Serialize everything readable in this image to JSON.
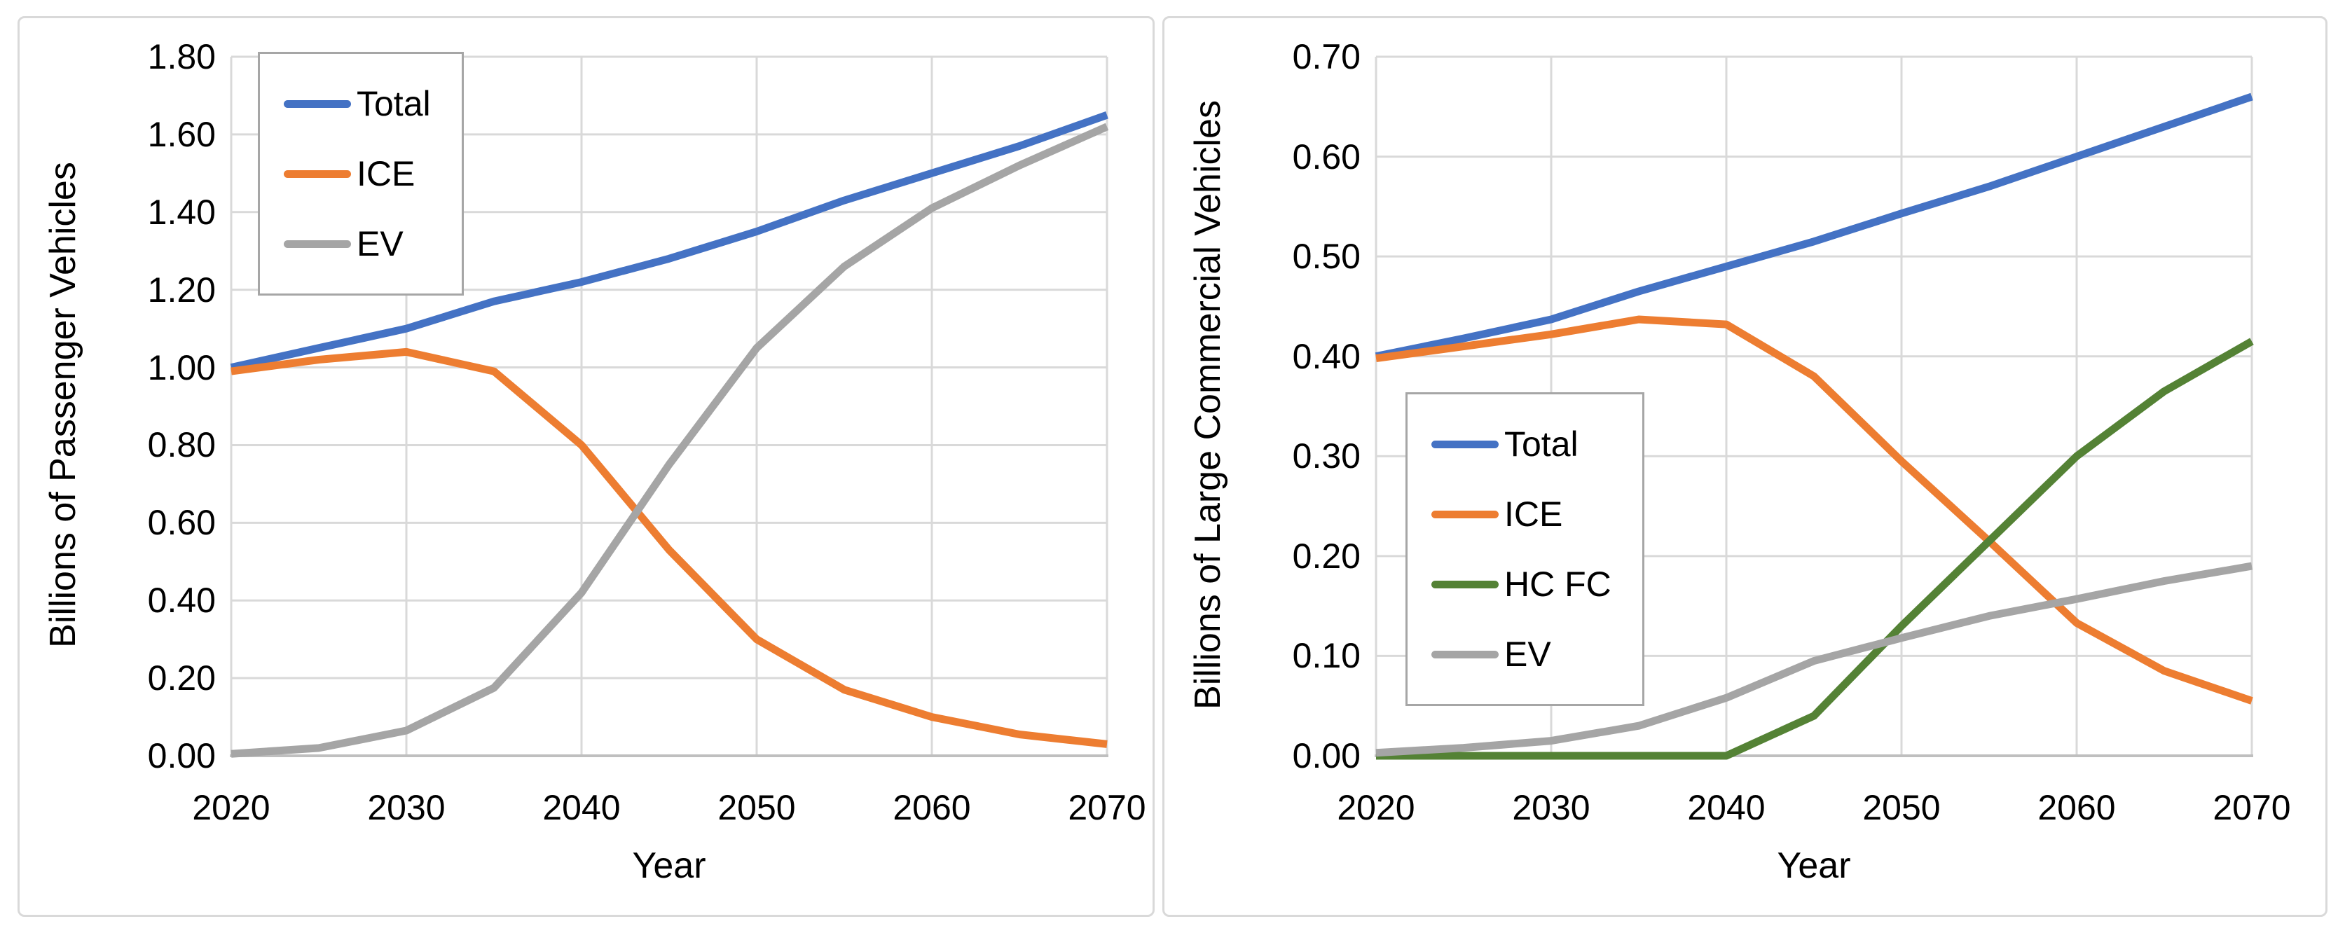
{
  "styles": {
    "panel_border": "#D9D9D9",
    "plot_border": "#D9D9D9",
    "gridline": "#D9D9D9",
    "axis_line": "#BFBFBF",
    "legend_border": "#A6A6A6",
    "text_color": "#000000"
  },
  "chart_data": [
    {
      "type": "line",
      "xlabel": "Year",
      "ylabel": "Billions of Passenger Vehicles",
      "x": [
        2020,
        2025,
        2030,
        2035,
        2040,
        2045,
        2050,
        2055,
        2060,
        2065,
        2070
      ],
      "xlim": [
        2020,
        2070
      ],
      "ylim": [
        0,
        1.8
      ],
      "grid": true,
      "legend_position": "upper-left",
      "x_tick_labels": [
        "2020",
        "2030",
        "2040",
        "2050",
        "2060",
        "2070"
      ],
      "y_tick_labels": [
        "0.00",
        "0.20",
        "0.40",
        "0.60",
        "0.80",
        "1.00",
        "1.20",
        "1.40",
        "1.60",
        "1.80"
      ],
      "series": [
        {
          "name": "Total",
          "color": "#4472C4",
          "values": [
            1.0,
            1.05,
            1.1,
            1.17,
            1.22,
            1.28,
            1.35,
            1.43,
            1.5,
            1.57,
            1.65
          ]
        },
        {
          "name": "ICE",
          "color": "#ED7D31",
          "values": [
            0.99,
            1.02,
            1.04,
            0.99,
            0.8,
            0.53,
            0.3,
            0.17,
            0.1,
            0.055,
            0.03
          ]
        },
        {
          "name": "EV",
          "color": "#A5A5A5",
          "values": [
            0.005,
            0.02,
            0.065,
            0.175,
            0.42,
            0.75,
            1.05,
            1.26,
            1.41,
            1.52,
            1.62
          ]
        }
      ]
    },
    {
      "type": "line",
      "xlabel": "Year",
      "ylabel": "Billions of Large Commercial Vehicles",
      "x": [
        2020,
        2025,
        2030,
        2035,
        2040,
        2045,
        2050,
        2055,
        2060,
        2065,
        2070
      ],
      "xlim": [
        2020,
        2070
      ],
      "ylim": [
        0,
        0.7
      ],
      "grid": true,
      "legend_position": "center-left",
      "x_tick_labels": [
        "2020",
        "2030",
        "2040",
        "2050",
        "2060",
        "2070"
      ],
      "y_tick_labels": [
        "0.00",
        "0.10",
        "0.20",
        "0.30",
        "0.40",
        "0.50",
        "0.60",
        "0.70"
      ],
      "series": [
        {
          "name": "Total",
          "color": "#4472C4",
          "values": [
            0.4,
            0.418,
            0.437,
            0.465,
            0.49,
            0.515,
            0.543,
            0.57,
            0.6,
            0.63,
            0.66
          ]
        },
        {
          "name": "ICE",
          "color": "#ED7D31",
          "values": [
            0.398,
            0.41,
            0.422,
            0.437,
            0.432,
            0.38,
            0.295,
            0.215,
            0.133,
            0.085,
            0.055
          ]
        },
        {
          "name": "HC FC",
          "color": "#548235",
          "values": [
            0,
            0,
            0,
            0,
            0,
            0.04,
            0.13,
            0.215,
            0.3,
            0.365,
            0.415
          ]
        },
        {
          "name": "EV",
          "color": "#A5A5A5",
          "values": [
            0.003,
            0.008,
            0.015,
            0.03,
            0.058,
            0.095,
            0.118,
            0.14,
            0.157,
            0.175,
            0.19
          ]
        }
      ]
    }
  ]
}
